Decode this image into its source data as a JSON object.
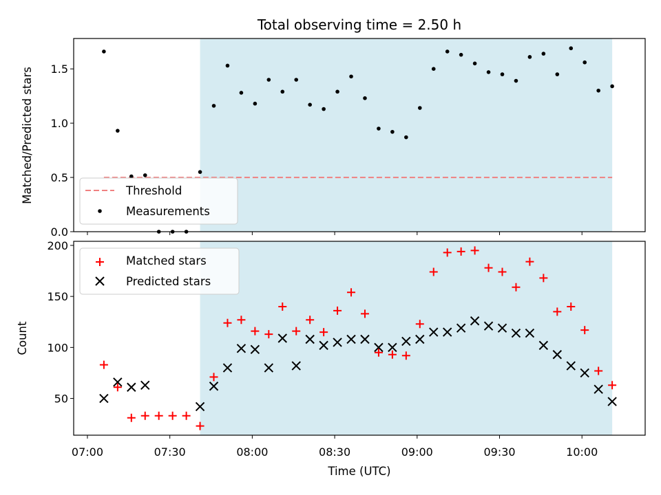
{
  "chart_data": [
    {
      "type": "scatter",
      "title": "Total observing time = 2.50 h",
      "ylabel": "Matched/Predicted stars",
      "ylim": [
        0,
        1.78
      ],
      "yticks": [
        "0.0",
        "0.5",
        "1.0",
        "1.5"
      ],
      "shaded_span": [
        "07:41",
        "10:11"
      ],
      "shaded_color": "#add8e6",
      "threshold": {
        "label": "Threshold",
        "value": 0.5,
        "x_range": [
          "07:06",
          "10:11"
        ],
        "color": "#f08080"
      },
      "legend": {
        "placement": "lower-left",
        "entries": [
          "Threshold",
          "Measurements"
        ]
      },
      "series": [
        {
          "name": "Measurements",
          "color": "#000000",
          "x": [
            "07:06",
            "07:11",
            "07:16",
            "07:21",
            "07:26",
            "07:31",
            "07:36",
            "07:41",
            "07:46",
            "07:51",
            "07:56",
            "08:01",
            "08:06",
            "08:11",
            "08:16",
            "08:21",
            "08:26",
            "08:31",
            "08:36",
            "08:41",
            "08:46",
            "08:51",
            "08:56",
            "09:01",
            "09:06",
            "09:11",
            "09:16",
            "09:21",
            "09:26",
            "09:31",
            "09:36",
            "09:41",
            "09:46",
            "09:51",
            "09:56",
            "10:01",
            "10:06",
            "10:11"
          ],
          "values": [
            1.66,
            0.93,
            0.51,
            0.52,
            0.0,
            0.0,
            0.0,
            0.55,
            1.16,
            1.53,
            1.28,
            1.18,
            1.4,
            1.29,
            1.4,
            1.17,
            1.13,
            1.29,
            1.43,
            1.23,
            0.95,
            0.92,
            0.87,
            1.14,
            1.5,
            1.66,
            1.63,
            1.55,
            1.47,
            1.45,
            1.39,
            1.61,
            1.64,
            1.45,
            1.69,
            1.56,
            1.3,
            1.34
          ]
        }
      ]
    },
    {
      "type": "scatter",
      "xlabel": "Time (UTC)",
      "ylabel": "Count",
      "ylim": [
        14,
        204
      ],
      "yticks": [
        "50",
        "100",
        "150",
        "200"
      ],
      "xlim": [
        "06:55",
        "10:23"
      ],
      "xticks": [
        "07:00",
        "07:30",
        "08:00",
        "08:30",
        "09:00",
        "09:30",
        "10:00"
      ],
      "shaded_span": [
        "07:41",
        "10:11"
      ],
      "shaded_color": "#add8e6",
      "legend": {
        "placement": "upper-left",
        "entries": [
          "Matched stars",
          "Predicted stars"
        ]
      },
      "x": [
        "07:06",
        "07:11",
        "07:16",
        "07:21",
        "07:26",
        "07:31",
        "07:36",
        "07:41",
        "07:46",
        "07:51",
        "07:56",
        "08:01",
        "08:06",
        "08:11",
        "08:16",
        "08:21",
        "08:26",
        "08:31",
        "08:36",
        "08:41",
        "08:46",
        "08:51",
        "08:56",
        "09:01",
        "09:06",
        "09:11",
        "09:16",
        "09:21",
        "09:26",
        "09:31",
        "09:36",
        "09:41",
        "09:46",
        "09:51",
        "09:56",
        "10:01",
        "10:06",
        "10:11"
      ],
      "series": [
        {
          "name": "Matched stars",
          "marker": "+",
          "color": "#ff0000",
          "x": [
            "07:06",
            "07:11",
            "07:16",
            "07:21",
            "07:26",
            "07:31",
            "07:36",
            "07:41",
            "07:46",
            "07:51",
            "07:56",
            "08:01",
            "08:06",
            "08:11",
            "08:16",
            "08:21",
            "08:26",
            "08:31",
            "08:36",
            "08:41",
            "08:46",
            "08:51",
            "08:56",
            "09:01",
            "09:06",
            "09:11",
            "09:16",
            "09:21",
            "09:26",
            "09:31",
            "09:36",
            "09:41",
            "09:46",
            "09:51",
            "09:56",
            "10:01",
            "10:06",
            "10:11"
          ],
          "values": [
            83,
            61,
            31,
            33,
            33,
            33,
            33,
            23,
            71,
            124,
            127,
            116,
            113,
            140,
            116,
            127,
            115,
            136,
            154,
            133,
            95,
            93,
            92,
            123,
            174,
            193,
            194,
            195,
            178,
            174,
            159,
            184,
            168,
            135,
            140,
            117,
            77,
            63
          ]
        },
        {
          "name": "Predicted stars",
          "marker": "x",
          "color": "#000000",
          "x": [
            "07:06",
            "07:11",
            "07:16",
            "07:21",
            "07:41",
            "07:46",
            "07:51",
            "07:56",
            "08:01",
            "08:06",
            "08:11",
            "08:16",
            "08:21",
            "08:26",
            "08:31",
            "08:36",
            "08:41",
            "08:46",
            "08:51",
            "08:56",
            "09:01",
            "09:06",
            "09:11",
            "09:16",
            "09:21",
            "09:26",
            "09:31",
            "09:36",
            "09:41",
            "09:46",
            "09:51",
            "09:56",
            "10:01",
            "10:06",
            "10:11"
          ],
          "values": [
            50,
            66,
            61,
            63,
            42,
            62,
            80,
            99,
            98,
            80,
            109,
            82,
            108,
            102,
            105,
            108,
            108,
            100,
            100,
            106,
            108,
            115,
            115,
            119,
            126,
            121,
            119,
            114,
            114,
            102,
            93,
            82,
            75,
            59,
            47
          ]
        }
      ]
    }
  ]
}
